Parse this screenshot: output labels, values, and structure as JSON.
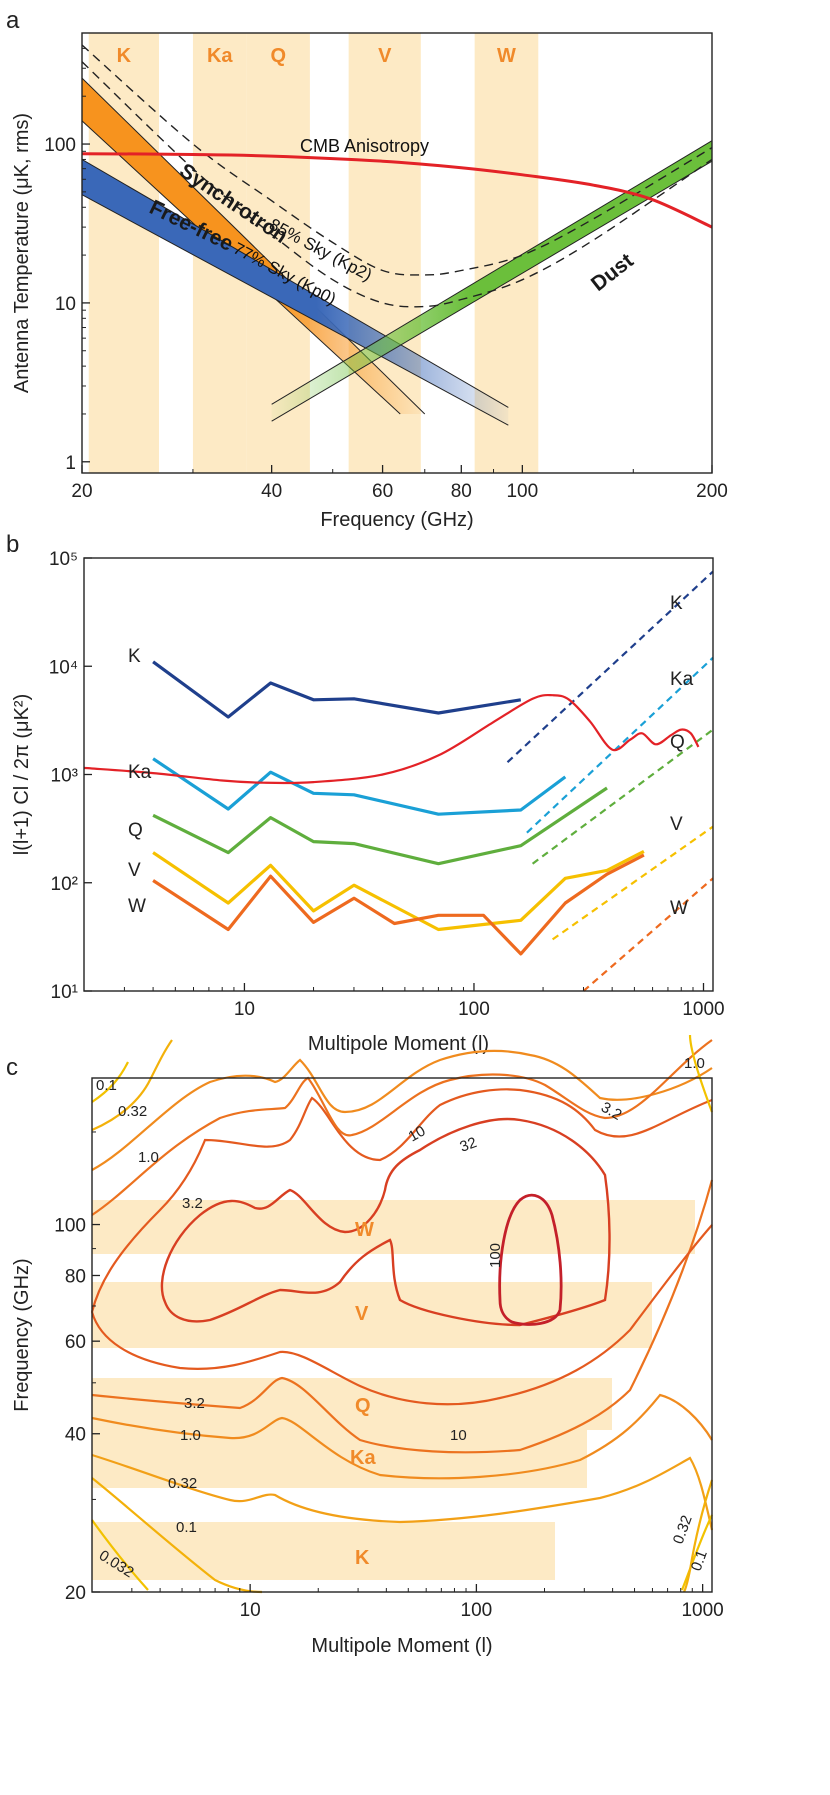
{
  "chart_data": [
    {
      "panel": "a",
      "type": "line",
      "title": "",
      "xlabel": "Frequency (GHz)",
      "ylabel": "Antenna Temperature (μK, rms)",
      "xscale": "log",
      "yscale": "log",
      "xlim": [
        20,
        200
      ],
      "ylim": [
        0.85,
        500
      ],
      "xticks": [
        20,
        40,
        60,
        80,
        100,
        200
      ],
      "xtick_labels": [
        "20",
        "40",
        "60",
        "80",
        "100",
        "200"
      ],
      "yticks": [
        1,
        10,
        100
      ],
      "ytick_labels": [
        "1",
        "10",
        "100"
      ],
      "bands": [
        {
          "name": "K",
          "range": [
            20.5,
            26.5
          ]
        },
        {
          "name": "Ka",
          "range": [
            30,
            36.5
          ]
        },
        {
          "name": "Q",
          "range": [
            36.5,
            46
          ]
        },
        {
          "name": "V",
          "range": [
            53,
            69
          ]
        },
        {
          "name": "W",
          "range": [
            84,
            106
          ]
        }
      ],
      "foregrounds": [
        {
          "name": "Synchrotron",
          "color": "#f7931e",
          "low": {
            "x": [
              20,
              64
            ],
            "y": [
              140,
              2
            ]
          },
          "high": {
            "x": [
              20,
              70
            ],
            "y": [
              260,
              2
            ]
          }
        },
        {
          "name": "Free-free",
          "color": "#3a68b8",
          "low": {
            "x": [
              20,
              95
            ],
            "y": [
              48,
              1.7
            ]
          },
          "high": {
            "x": [
              20,
              95
            ],
            "y": [
              80,
              2.2
            ]
          }
        },
        {
          "name": "Dust",
          "color": "#6bbf3b",
          "low": {
            "x": [
              40,
              200
            ],
            "y": [
              1.8,
              78
            ]
          },
          "high": {
            "x": [
              40,
              200
            ],
            "y": [
              2.3,
              105
            ]
          }
        }
      ],
      "sky_curves": [
        {
          "name": "85% Sky (Kp2)",
          "x": [
            20,
            30,
            40,
            50,
            60,
            70,
            80,
            100,
            130,
            200
          ],
          "y": [
            420,
            100,
            44,
            24,
            16,
            15,
            16,
            20,
            34,
            95
          ]
        },
        {
          "name": "77% Sky (Kp0)",
          "x": [
            20,
            30,
            40,
            50,
            60,
            70,
            80,
            100,
            130,
            200
          ],
          "y": [
            330,
            70,
            27,
            14,
            10,
            9.5,
            10.5,
            14,
            25,
            80
          ]
        }
      ],
      "cmb": {
        "name": "CMB Anisotropy",
        "color": "#e32227",
        "x": [
          20,
          30,
          40,
          60,
          80,
          100,
          130,
          160,
          200
        ],
        "y": [
          87,
          86,
          84,
          78,
          71,
          64,
          55,
          45,
          30
        ]
      }
    },
    {
      "panel": "b",
      "type": "line",
      "xlabel": "Multipole Moment (l)",
      "ylabel": "l(l+1) Cl / 2π (μK²)",
      "xscale": "log",
      "yscale": "log",
      "xlim": [
        2,
        1100
      ],
      "ylim": [
        10,
        100000
      ],
      "xticks": [
        10,
        100,
        1000
      ],
      "xtick_labels": [
        "10",
        "100",
        "1000"
      ],
      "yticks": [
        10,
        100,
        1000,
        10000,
        100000
      ],
      "ytick_labels": [
        "10¹",
        "10²",
        "10³",
        "10⁴",
        "10⁵"
      ],
      "series": [
        {
          "name": "K",
          "color": "#1f3f8c",
          "x": [
            4,
            8.5,
            13,
            20,
            30,
            70,
            160
          ],
          "y": [
            11000,
            3400,
            7000,
            4900,
            5000,
            3700,
            4900
          ]
        },
        {
          "name": "Ka",
          "color": "#1aa0d6",
          "x": [
            4,
            8.5,
            13,
            20,
            30,
            70,
            160,
            250
          ],
          "y": [
            1400,
            480,
            1050,
            670,
            650,
            430,
            470,
            950
          ]
        },
        {
          "name": "Q",
          "color": "#5fae3d",
          "x": [
            4,
            8.5,
            13,
            20,
            30,
            70,
            160,
            380
          ],
          "y": [
            420,
            190,
            400,
            240,
            230,
            150,
            220,
            750
          ]
        },
        {
          "name": "V",
          "color": "#f6c000",
          "x": [
            4,
            8.5,
            13,
            20,
            30,
            70,
            160,
            250,
            380,
            550
          ],
          "y": [
            190,
            65,
            145,
            55,
            95,
            37,
            45,
            110,
            130,
            195
          ]
        },
        {
          "name": "W",
          "color": "#ee6a1f",
          "x": [
            4,
            8.5,
            13,
            20,
            30,
            45,
            70,
            110,
            160,
            250,
            380,
            550
          ],
          "y": [
            105,
            37,
            115,
            43,
            72,
            42,
            50,
            50,
            22,
            65,
            120,
            180
          ]
        }
      ],
      "noise_lines": [
        {
          "name": "K",
          "color": "#1f3f8c",
          "x": [
            140,
            1100
          ],
          "y": [
            1300,
            75000
          ]
        },
        {
          "name": "Ka",
          "color": "#1aa0d6",
          "x": [
            170,
            1100
          ],
          "y": [
            290,
            12000
          ]
        },
        {
          "name": "Q",
          "color": "#5fae3d",
          "x": [
            180,
            1100
          ],
          "y": [
            150,
            2600
          ]
        },
        {
          "name": "V",
          "color": "#f6c000",
          "x": [
            220,
            1100
          ],
          "y": [
            30,
            330
          ]
        },
        {
          "name": "W",
          "color": "#ee6a1f",
          "x": [
            300,
            1100
          ],
          "y": [
            10,
            110
          ]
        }
      ],
      "cmb": {
        "name": "CMB",
        "color": "#e32227",
        "x": [
          2,
          4,
          8,
          12,
          20,
          40,
          70,
          120,
          180,
          220,
          260,
          320,
          400,
          480,
          540,
          620,
          720,
          800,
          880,
          950
        ],
        "y": [
          1150,
          1030,
          880,
          840,
          850,
          1000,
          1500,
          3000,
          5000,
          5400,
          4900,
          3100,
          1700,
          2100,
          2400,
          1900,
          2300,
          2600,
          2400,
          1800
        ]
      }
    },
    {
      "panel": "c",
      "type": "contour",
      "xlabel": "Multipole Moment (l)",
      "ylabel": "Frequency (GHz)",
      "xscale": "log",
      "yscale": "log",
      "xlim": [
        2,
        1100
      ],
      "ylim": [
        20,
        190
      ],
      "xticks": [
        10,
        100,
        1000
      ],
      "xtick_labels": [
        "10",
        "100",
        "1000"
      ],
      "yticks": [
        20,
        40,
        60,
        80,
        100
      ],
      "ytick_labels": [
        "20",
        "40",
        "60",
        "80",
        "100"
      ],
      "contour_levels": [
        "0.032",
        "0.1",
        "0.32",
        "1.0",
        "3.2",
        "10",
        "32",
        "100"
      ],
      "band_labels": [
        "W",
        "V",
        "Q",
        "Ka",
        "K"
      ]
    }
  ],
  "panel_letters": [
    "a",
    "b",
    "c"
  ],
  "annotations": {
    "cmb_anisotropy": "CMB Anisotropy",
    "synchrotron": "Synchrotron",
    "free_free": "Free-free",
    "dust": "Dust",
    "sky85": "85% Sky (Kp2)",
    "sky77": "77% Sky (Kp0)"
  },
  "colors": {
    "band": "#fdeac5",
    "band_label": "#f08a2a",
    "cmb": "#e32227"
  }
}
